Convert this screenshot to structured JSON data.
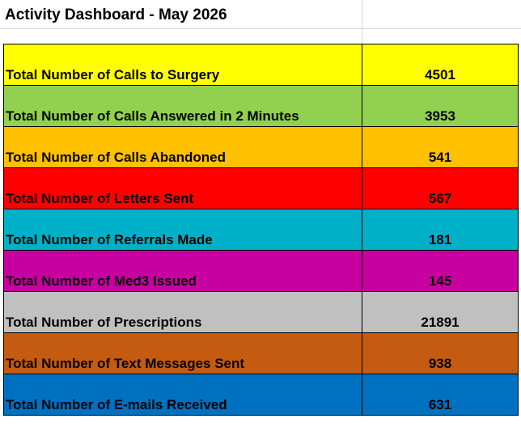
{
  "title": "Activity Dashboard - May 2026",
  "rows": [
    {
      "label": "Total Number of Calls to Surgery",
      "value": "4501",
      "color": "#FFFF00"
    },
    {
      "label": "Total Number of Calls Answered in 2 Minutes",
      "value": "3953",
      "color": "#92D050"
    },
    {
      "label": "Total Number of Calls Abandoned",
      "value": "541",
      "color": "#FFC000"
    },
    {
      "label": "Total Number of Letters Sent",
      "value": "567",
      "color": "#FF0000"
    },
    {
      "label": "Total Number of Referrals Made",
      "value": "181",
      "color": "#00B0C8"
    },
    {
      "label": "Total Number of Med3 Issued",
      "value": "145",
      "color": "#C800A0"
    },
    {
      "label": "Total Number of Prescriptions",
      "value": "21891",
      "color": "#C0C0C0"
    },
    {
      "label": "Total Number of Text Messages Sent",
      "value": "938",
      "color": "#C55A11"
    },
    {
      "label": "Total Number of E-mails Received",
      "value": "631",
      "color": "#0070C0"
    }
  ]
}
